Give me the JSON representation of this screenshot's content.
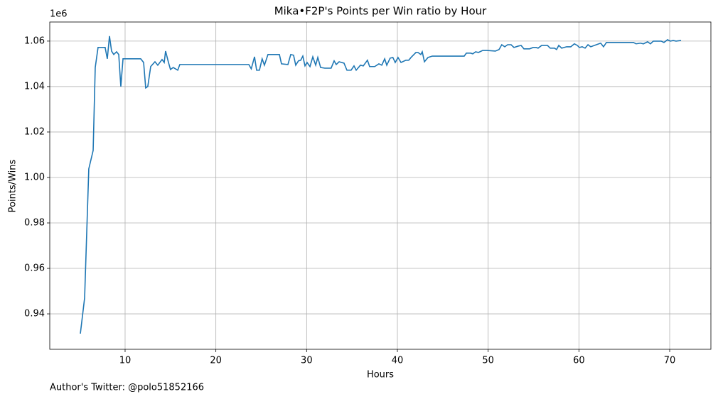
{
  "chart_data": {
    "type": "line",
    "title": "Mika•F2P's Points per Win ratio by Hour",
    "xlabel": "Hours",
    "ylabel": "Points/Wins",
    "y_offset_label": "1e6",
    "footnote": "Author's Twitter: @polo51852166",
    "grid": true,
    "xlim": [
      1.7,
      74.54
    ],
    "ylim": [
      0.9244,
      1.0684
    ],
    "xticks": [
      10,
      20,
      30,
      40,
      50,
      60,
      70
    ],
    "yticks": [
      0.94,
      0.96,
      0.98,
      {
        "value": 1,
        "label": "1.00"
      },
      1.02,
      1.04,
      1.06
    ],
    "x": [
      5.07,
      5.54,
      6.0,
      6.48,
      6.71,
      7.02,
      7.8,
      8.04,
      8.28,
      8.51,
      8.75,
      9.06,
      9.3,
      9.53,
      9.77,
      11.72,
      12.04,
      12.27,
      12.5,
      12.82,
      13.29,
      13.6,
      14.07,
      14.31,
      14.46,
      14.78,
      15.0,
      15.3,
      15.8,
      16.03,
      23.63,
      23.9,
      24.26,
      24.49,
      24.8,
      25.1,
      25.35,
      25.74,
      27.0,
      27.23,
      27.94,
      28.25,
      28.56,
      28.8,
      29.1,
      29.35,
      29.58,
      29.82,
      30.05,
      30.37,
      30.68,
      31.0,
      31.23,
      31.54,
      32.0,
      32.7,
      33.03,
      33.26,
      33.58,
      34.12,
      34.44,
      34.9,
      35.22,
      35.46,
      35.93,
      36.24,
      36.7,
      36.94,
      37.5,
      37.96,
      38.28,
      38.6,
      38.83,
      39.2,
      39.5,
      39.76,
      40.07,
      40.4,
      40.94,
      41.25,
      41.5,
      42.04,
      42.27,
      42.58,
      42.74,
      42.98,
      43.37,
      43.84,
      47.36,
      47.6,
      48.07,
      48.3,
      48.62,
      48.93,
      49.4,
      49.87,
      50.8,
      51.2,
      51.5,
      51.83,
      52.14,
      52.53,
      52.84,
      53.31,
      53.63,
      53.94,
      54.57,
      54.96,
      55.27,
      55.5,
      55.9,
      56.53,
      56.84,
      57.31,
      57.54,
      57.78,
      58.1,
      58.64,
      59.1,
      59.5,
      59.82,
      60.05,
      60.36,
      60.68,
      61.0,
      61.3,
      61.7,
      62.4,
      62.71,
      63.03,
      66.0,
      66.3,
      66.79,
      67.1,
      67.57,
      67.88,
      68.2,
      69.06,
      69.37,
      69.76,
      70.08,
      70.39,
      70.7,
      71.25
    ],
    "series": [
      {
        "color": "#1f77b4",
        "values": [
          0.9313,
          0.947,
          1.0038,
          1.0119,
          1.0484,
          1.0572,
          1.0572,
          1.0522,
          1.0622,
          1.0556,
          1.0541,
          1.0553,
          1.0541,
          1.04,
          1.0522,
          1.0522,
          1.0506,
          1.0394,
          1.04,
          1.0488,
          1.0509,
          1.0494,
          1.0519,
          1.0506,
          1.0556,
          1.0506,
          1.0475,
          1.0484,
          1.0472,
          1.0497,
          1.0497,
          1.0478,
          1.0531,
          1.0472,
          1.0472,
          1.0522,
          1.0494,
          1.0541,
          1.0541,
          1.05,
          1.0497,
          1.0541,
          1.0538,
          1.0494,
          1.0513,
          1.0516,
          1.0534,
          1.0491,
          1.0506,
          1.0488,
          1.0531,
          1.0494,
          1.0528,
          1.0484,
          1.0481,
          1.0481,
          1.0513,
          1.0497,
          1.0509,
          1.0503,
          1.0472,
          1.0472,
          1.0491,
          1.0472,
          1.0494,
          1.0491,
          1.0516,
          1.0488,
          1.0488,
          1.05,
          1.0494,
          1.0522,
          1.0494,
          1.0525,
          1.0528,
          1.0506,
          1.0528,
          1.0506,
          1.0516,
          1.0516,
          1.0528,
          1.055,
          1.055,
          1.0541,
          1.0553,
          1.0509,
          1.0528,
          1.0534,
          1.0534,
          1.0547,
          1.0547,
          1.0544,
          1.0553,
          1.055,
          1.0559,
          1.0559,
          1.0556,
          1.0563,
          1.0584,
          1.0575,
          1.0584,
          1.0584,
          1.0572,
          1.0578,
          1.0581,
          1.0566,
          1.0566,
          1.0572,
          1.0572,
          1.0569,
          1.0581,
          1.0581,
          1.0569,
          1.0569,
          1.0563,
          1.0581,
          1.0569,
          1.0575,
          1.0575,
          1.0588,
          1.0581,
          1.0572,
          1.0575,
          1.0569,
          1.0584,
          1.0575,
          1.0581,
          1.0591,
          1.0575,
          1.0594,
          1.0594,
          1.0588,
          1.0591,
          1.0588,
          1.0597,
          1.0588,
          1.06,
          1.06,
          1.0594,
          1.0606,
          1.06,
          1.0603,
          1.06,
          1.0603
        ]
      }
    ]
  }
}
